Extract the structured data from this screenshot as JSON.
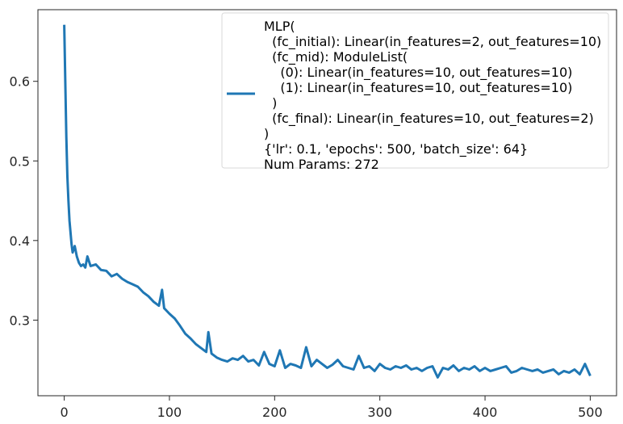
{
  "chart_data": {
    "type": "line",
    "title": "",
    "xlabel": "",
    "ylabel": "",
    "xlim": [
      -25,
      525
    ],
    "ylim": [
      0.205,
      0.69
    ],
    "xticks": [
      0,
      100,
      200,
      300,
      400,
      500
    ],
    "yticks": [
      0.3,
      0.4,
      0.5,
      0.6
    ],
    "grid": false,
    "legend_position": "upper right",
    "colors": {
      "line": "#1f77b4"
    },
    "series": [
      {
        "name": "MLP(\n  (fc_initial): Linear(in_features=2, out_features=10)\n  (fc_mid): ModuleList(\n    (0): Linear(in_features=10, out_features=10)\n    (1): Linear(in_features=10, out_features=10)\n  )\n  (fc_final): Linear(in_features=10, out_features=2)\n)\n{'lr': 0.1, 'epochs': 500, 'batch_size': 64}\nNum Params: 272",
        "x": [
          0,
          1,
          2,
          3,
          4,
          5,
          6,
          7,
          8,
          10,
          12,
          14,
          16,
          18,
          20,
          22,
          25,
          30,
          35,
          40,
          45,
          50,
          55,
          60,
          65,
          70,
          75,
          80,
          85,
          90,
          93,
          95,
          100,
          105,
          110,
          115,
          120,
          125,
          130,
          135,
          137,
          140,
          145,
          150,
          155,
          160,
          165,
          170,
          175,
          180,
          185,
          190,
          195,
          200,
          205,
          210,
          215,
          220,
          225,
          230,
          235,
          240,
          245,
          250,
          255,
          260,
          265,
          270,
          275,
          280,
          285,
          290,
          295,
          300,
          305,
          310,
          315,
          320,
          325,
          330,
          335,
          340,
          345,
          350,
          355,
          360,
          365,
          370,
          375,
          380,
          385,
          390,
          395,
          400,
          405,
          410,
          415,
          420,
          425,
          430,
          435,
          440,
          445,
          450,
          455,
          460,
          465,
          470,
          475,
          480,
          485,
          490,
          495,
          500
        ],
        "values": [
          0.671,
          0.6,
          0.53,
          0.48,
          0.45,
          0.425,
          0.41,
          0.395,
          0.385,
          0.393,
          0.38,
          0.372,
          0.368,
          0.37,
          0.366,
          0.38,
          0.368,
          0.37,
          0.363,
          0.362,
          0.355,
          0.358,
          0.352,
          0.348,
          0.345,
          0.342,
          0.335,
          0.33,
          0.323,
          0.318,
          0.338,
          0.315,
          0.308,
          0.302,
          0.293,
          0.283,
          0.277,
          0.27,
          0.265,
          0.26,
          0.285,
          0.258,
          0.253,
          0.25,
          0.248,
          0.252,
          0.25,
          0.255,
          0.248,
          0.25,
          0.243,
          0.26,
          0.245,
          0.242,
          0.262,
          0.24,
          0.245,
          0.243,
          0.24,
          0.266,
          0.242,
          0.25,
          0.245,
          0.24,
          0.244,
          0.25,
          0.242,
          0.24,
          0.238,
          0.255,
          0.24,
          0.242,
          0.236,
          0.245,
          0.24,
          0.238,
          0.242,
          0.24,
          0.243,
          0.238,
          0.24,
          0.236,
          0.24,
          0.242,
          0.228,
          0.24,
          0.238,
          0.243,
          0.236,
          0.24,
          0.238,
          0.242,
          0.236,
          0.24,
          0.236,
          0.238,
          0.24,
          0.242,
          0.234,
          0.236,
          0.24,
          0.238,
          0.236,
          0.238,
          0.234,
          0.236,
          0.238,
          0.232,
          0.236,
          0.234,
          0.238,
          0.232,
          0.245,
          0.23
        ]
      }
    ]
  }
}
